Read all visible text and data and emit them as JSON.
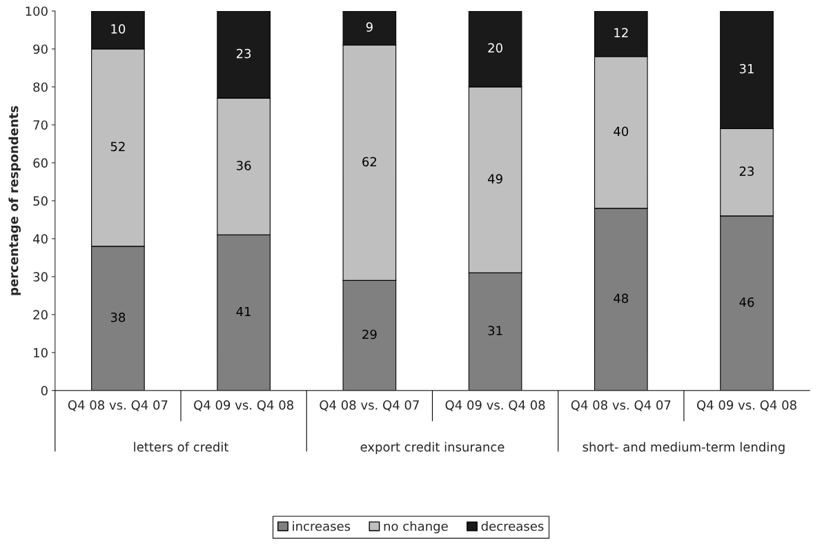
{
  "chart_data": {
    "type": "bar",
    "stacked": true,
    "ylabel": "percentage of respondents",
    "categories": [
      "Q4 08 vs. Q4 07",
      "Q4 09 vs. Q4 08",
      "Q4 08 vs. Q4 07",
      "Q4 09 vs. Q4 08",
      "Q4 08 vs. Q4 07",
      "Q4 09 vs. Q4 08"
    ],
    "series": [
      {
        "name": "increases",
        "color": "#808080",
        "values": [
          38,
          41,
          29,
          31,
          48,
          46
        ]
      },
      {
        "name": "no change",
        "color": "#bfbfbf",
        "values": [
          52,
          36,
          62,
          49,
          40,
          23
        ]
      },
      {
        "name": "decreases",
        "color": "#1a1a1a",
        "values": [
          10,
          23,
          9,
          20,
          12,
          31
        ]
      }
    ],
    "annotations": [
      "letters of credit",
      "export credit insurance",
      "short- and medium-term lending"
    ],
    "ylim": [
      0,
      100
    ],
    "yticks": [
      0,
      10,
      20,
      30,
      40,
      50,
      60,
      70,
      80,
      90,
      100
    ],
    "data_labels": true,
    "grid": false,
    "legend": "bottom"
  }
}
